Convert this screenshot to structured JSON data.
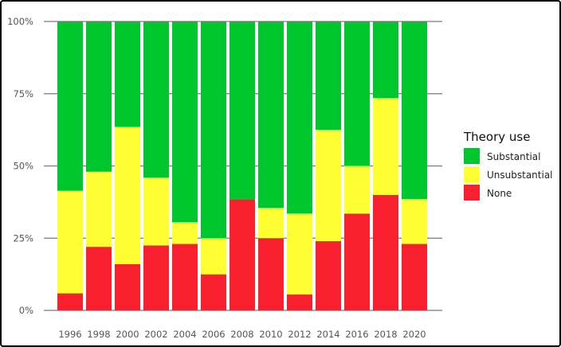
{
  "chart_data": {
    "type": "bar",
    "stacked": true,
    "percent": true,
    "title": "",
    "xlabel": "",
    "ylabel": "",
    "ylim": [
      0,
      100
    ],
    "y_ticks": [
      "0%",
      "25%",
      "50%",
      "75%",
      "100%"
    ],
    "y_tick_values": [
      0,
      25,
      50,
      75,
      100
    ],
    "categories": [
      "1996",
      "1998",
      "2000",
      "2002",
      "2004",
      "2006",
      "2008",
      "2010",
      "2012",
      "2014",
      "2016",
      "2018",
      "2020"
    ],
    "series": [
      {
        "name": "None",
        "color": "#f8202f",
        "values": [
          5.9,
          22,
          16,
          22.5,
          23,
          12.5,
          38.5,
          25,
          5.5,
          24,
          33.5,
          40,
          23
        ]
      },
      {
        "name": "Unsubstantial",
        "color": "#ffff33",
        "values": [
          35.5,
          26,
          47.5,
          23.5,
          7.5,
          12.5,
          0,
          10.5,
          28,
          38.5,
          16.5,
          33.5,
          15.5
        ]
      },
      {
        "name": "Substantial",
        "color": "#00c62e",
        "values": [
          58.6,
          52,
          36.5,
          54,
          69.5,
          75,
          61.5,
          64.5,
          66.5,
          37.5,
          50,
          26.5,
          61.5
        ]
      }
    ],
    "legend": {
      "title": "Theory use",
      "position": "right",
      "items": [
        "Substantial",
        "Unsubstantial",
        "None"
      ]
    }
  }
}
